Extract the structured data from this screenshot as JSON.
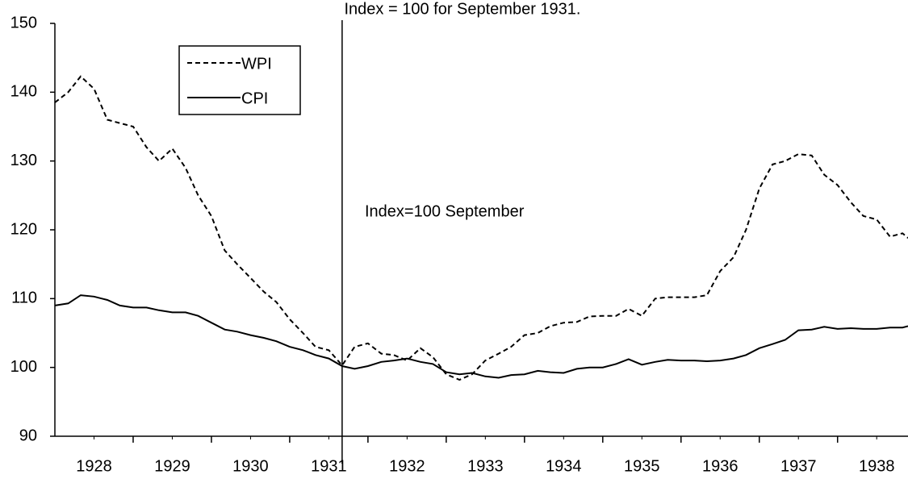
{
  "chart_data": {
    "type": "line",
    "title": "Index = 100 for September 1931.",
    "annotation": "Index=100 September",
    "reference_x": 1931.67,
    "legend": "upper left",
    "x": [
      1928.0,
      1928.17,
      1928.33,
      1928.5,
      1928.67,
      1928.83,
      1929.0,
      1929.17,
      1929.33,
      1929.5,
      1929.67,
      1929.83,
      1930.0,
      1930.17,
      1930.33,
      1930.5,
      1930.67,
      1930.83,
      1931.0,
      1931.17,
      1931.33,
      1931.5,
      1931.67,
      1931.83,
      1932.0,
      1932.17,
      1932.33,
      1932.5,
      1932.67,
      1932.83,
      1933.0,
      1933.17,
      1933.33,
      1933.5,
      1933.67,
      1933.83,
      1934.0,
      1934.17,
      1934.33,
      1934.5,
      1934.67,
      1934.83,
      1935.0,
      1935.17,
      1935.33,
      1935.5,
      1935.67,
      1935.83,
      1936.0,
      1936.17,
      1936.33,
      1936.5,
      1936.67,
      1936.83,
      1937.0,
      1937.17,
      1937.33,
      1937.5,
      1937.67,
      1937.83,
      1938.0,
      1938.17,
      1938.33,
      1938.5,
      1938.67,
      1938.83,
      1938.9
    ],
    "series": [
      {
        "name": "WPI",
        "color": "#000000",
        "line_style": "dashed",
        "values": [
          138.5,
          140,
          142.3,
          140.5,
          136,
          135.5,
          135,
          132,
          130,
          131.8,
          129,
          125,
          122,
          117,
          115,
          113,
          111,
          109.5,
          107,
          105,
          103,
          102.5,
          100.3,
          103,
          103.5,
          102,
          101.8,
          101,
          102.8,
          101.5,
          99,
          98.2,
          99,
          101,
          102,
          103,
          104.7,
          105,
          106,
          106.5,
          106.6,
          107.4,
          107.5,
          107.5,
          108.5,
          107.5,
          110,
          110.2,
          110.2,
          110.2,
          110.5,
          114,
          116,
          120,
          126,
          129.5,
          130,
          131,
          130.8,
          128,
          126.5,
          124,
          122,
          121.5,
          119,
          119.5,
          118.8
        ]
      },
      {
        "name": "CPI",
        "color": "#000000",
        "line_style": "solid",
        "values": [
          109,
          109.3,
          110.5,
          110.3,
          109.8,
          109,
          108.7,
          108.7,
          108.3,
          108,
          108,
          107.5,
          106.5,
          105.5,
          105.2,
          104.7,
          104.3,
          103.8,
          103,
          102.5,
          101.8,
          101.3,
          100.2,
          99.8,
          100.2,
          100.8,
          101,
          101.3,
          100.8,
          100.5,
          99.3,
          99,
          99.2,
          98.7,
          98.5,
          98.9,
          99,
          99.5,
          99.3,
          99.2,
          99.8,
          100,
          100,
          100.5,
          101.2,
          100.4,
          100.8,
          101.1,
          101,
          101,
          100.9,
          101,
          101.3,
          101.8,
          102.8,
          103.4,
          104,
          105.4,
          105.5,
          105.9,
          105.6,
          105.7,
          105.6,
          105.6,
          105.8,
          105.8,
          106
        ]
      }
    ],
    "xlim": [
      1928,
      1938.9
    ],
    "xticks": [
      {
        "value": 1928.5,
        "label": "1928"
      },
      {
        "value": 1929.5,
        "label": "1929"
      },
      {
        "value": 1930.5,
        "label": "1930"
      },
      {
        "value": 1931.5,
        "label": "1931"
      },
      {
        "value": 1932.5,
        "label": "1932"
      },
      {
        "value": 1933.5,
        "label": "1933"
      },
      {
        "value": 1934.5,
        "label": "1934"
      },
      {
        "value": 1935.5,
        "label": "1935"
      },
      {
        "value": 1936.5,
        "label": "1936"
      },
      {
        "value": 1937.5,
        "label": "1937"
      },
      {
        "value": 1938.5,
        "label": "1938"
      }
    ],
    "ylim": [
      90,
      150
    ],
    "yticks": [
      90,
      100,
      110,
      120,
      130,
      140,
      150
    ]
  }
}
